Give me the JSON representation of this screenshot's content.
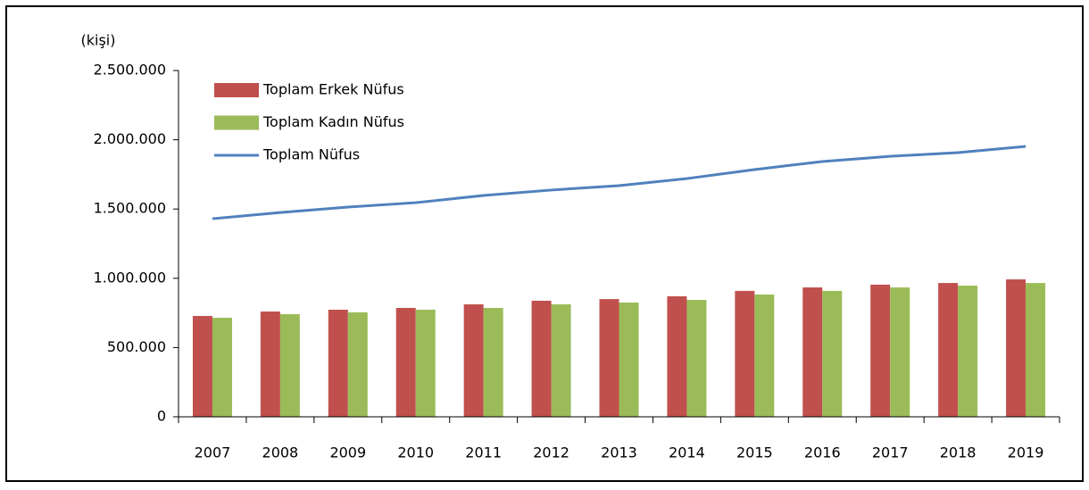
{
  "chart_data": {
    "type": "bar-line",
    "y_label": "(kişi)",
    "categories": [
      "2007",
      "2008",
      "2009",
      "2010",
      "2011",
      "2012",
      "2013",
      "2014",
      "2015",
      "2016",
      "2017",
      "2018",
      "2019"
    ],
    "series": [
      {
        "name": "Toplam Erkek Nüfus",
        "type": "bar",
        "color": "#c0504d",
        "values": [
          728000,
          760000,
          773000,
          786000,
          812000,
          838000,
          850000,
          870000,
          909000,
          934000,
          954000,
          966000,
          992000
        ]
      },
      {
        "name": "Toplam Kadın Nüfus",
        "type": "bar",
        "color": "#9bbb59",
        "values": [
          715000,
          741000,
          754000,
          773000,
          786000,
          812000,
          825000,
          844000,
          883000,
          909000,
          934000,
          947000,
          966000
        ]
      },
      {
        "name": "Toplam Nüfus",
        "type": "line",
        "color": "#4f81bd",
        "values": [
          1430000,
          1475000,
          1514000,
          1546000,
          1598000,
          1637000,
          1669000,
          1720000,
          1785000,
          1843000,
          1881000,
          1907000,
          1952000
        ]
      }
    ],
    "ylim": [
      0,
      2500000
    ],
    "yticks": [
      0,
      {
        "value": 500000,
        "label": "500.000"
      },
      {
        "value": 1000000,
        "label": "1.000.000"
      },
      {
        "value": 1500000,
        "label": "1.500.000"
      },
      {
        "value": 2000000,
        "label": "2.000.000"
      },
      {
        "value": 2500000,
        "label": "2.500.000"
      }
    ],
    "legend": "top-left"
  }
}
